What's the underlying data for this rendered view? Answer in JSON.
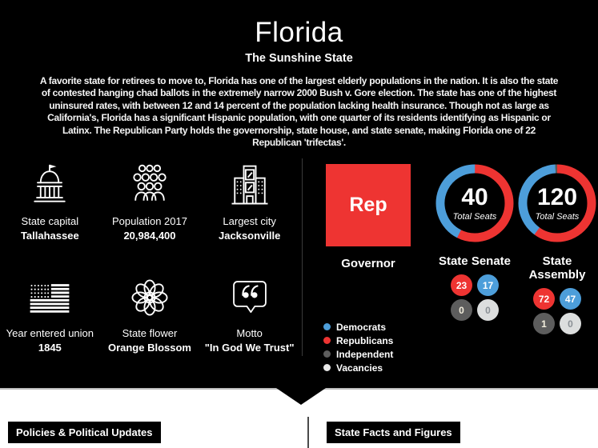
{
  "hero": {
    "title": "Florida",
    "subtitle": "The Sunshine State",
    "description": "A favorite state for retirees to move to, Florida has one of the largest elderly populations in the nation. It is also the state of contested hanging chad ballots in the extremely narrow 2000 Bush v. Gore election. The state has one of the highest uninsured rates, with between 12 and 14 percent of the population lacking health insurance. Though not as large as California's, Florida has a significant Hispanic population, with one quarter of its residents identifying as Hispanic or Latinx. The Republican Party holds the governorship, state house, and state senate, making Florida one of 22 Republican 'trifectas'."
  },
  "facts": {
    "items": [
      {
        "icon": "capitol-icon",
        "label": "State capital",
        "value": "Tallahassee"
      },
      {
        "icon": "people-icon",
        "label": "Population 2017",
        "value": "20,984,400"
      },
      {
        "icon": "city-icon",
        "label": "Largest city",
        "value": "Jacksonville"
      },
      {
        "icon": "us-flag-icon",
        "label": "Year entered union",
        "value": "1845"
      },
      {
        "icon": "flower-icon",
        "label": "State flower",
        "value": "Orange Blossom"
      },
      {
        "icon": "quote-icon",
        "label": "Motto",
        "value": "\"In God We Trust\""
      }
    ]
  },
  "governor": {
    "party": "Rep",
    "label": "Governor",
    "color": "#ee3432"
  },
  "chart_data": [
    {
      "type": "pie",
      "title": "State Senate",
      "center_value": "40",
      "center_label": "Total Seats",
      "total_seats": 40,
      "segments": [
        {
          "name": "Republicans",
          "value": 23,
          "color": "#ee3432"
        },
        {
          "name": "Democrats",
          "value": 17,
          "color": "#4d9eda"
        },
        {
          "name": "Independent",
          "value": 0,
          "color": "#5d5d5d"
        },
        {
          "name": "Vacancies",
          "value": 0,
          "color": "#dcdede"
        }
      ],
      "badges": [
        {
          "value": "23",
          "bg": "#ee3432",
          "fg": "#ffffff"
        },
        {
          "value": "17",
          "bg": "#4d9eda",
          "fg": "#ffffff"
        },
        {
          "value": "0",
          "bg": "#5d5d5d",
          "fg": "#f3eedd"
        },
        {
          "value": "0",
          "bg": "#dcdede",
          "fg": "#8a9095"
        }
      ]
    },
    {
      "type": "pie",
      "title": "State Assembly",
      "center_value": "120",
      "center_label": "Total Seats",
      "total_seats": 120,
      "segments": [
        {
          "name": "Republicans",
          "value": 72,
          "color": "#ee3432"
        },
        {
          "name": "Democrats",
          "value": 47,
          "color": "#4d9eda"
        },
        {
          "name": "Independent",
          "value": 1,
          "color": "#5d5d5d"
        },
        {
          "name": "Vacancies",
          "value": 0,
          "color": "#dcdede"
        }
      ],
      "badges": [
        {
          "value": "72",
          "bg": "#ee3432",
          "fg": "#ffffff"
        },
        {
          "value": "47",
          "bg": "#4d9eda",
          "fg": "#ffffff"
        },
        {
          "value": "1",
          "bg": "#5d5d5d",
          "fg": "#f3eedd"
        },
        {
          "value": "0",
          "bg": "#dcdede",
          "fg": "#8a9095"
        }
      ]
    }
  ],
  "legend": {
    "items": [
      {
        "label": "Democrats",
        "color": "#4d9eda"
      },
      {
        "label": "Republicans",
        "color": "#ee3432"
      },
      {
        "label": "Independent",
        "color": "#5d5d5d"
      },
      {
        "label": "Vacancies",
        "color": "#e8e8e8"
      }
    ]
  },
  "footer": {
    "sections": [
      {
        "label": "Policies & Political Updates"
      },
      {
        "label": "State Facts and Figures"
      }
    ]
  }
}
